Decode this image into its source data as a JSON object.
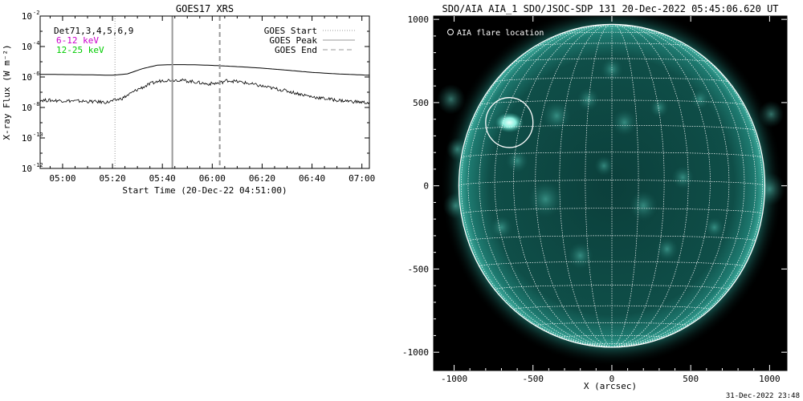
{
  "footer_timestamp": "31-Dec-2022 23:48",
  "chart_data": [
    {
      "type": "line",
      "title": "GOES17 XRS",
      "xlabel": "Start Time (20-Dec-22 04:51:00)",
      "ylabel": "X-ray Flux (W m⁻²)",
      "x_ticks": [
        "05:00",
        "05:20",
        "05:40",
        "06:00",
        "06:20",
        "06:40",
        "07:00"
      ],
      "x_range": [
        "04:51",
        "07:03"
      ],
      "y_scale": "log",
      "y_ticks": [
        {
          "base": "10",
          "exp": "-2"
        },
        {
          "base": "10",
          "exp": "-4"
        },
        {
          "base": "10",
          "exp": "-6"
        },
        {
          "base": "10",
          "exp": "-8"
        },
        {
          "base": "10",
          "exp": "-10"
        },
        {
          "base": "10",
          "exp": "-12"
        }
      ],
      "y_range": [
        1e-12,
        0.01
      ],
      "detectors_label": "Det71,3,4,5,6,9",
      "series": [
        {
          "name": "6-12 keV",
          "color": "#cc00cc",
          "points": [
            [
              "04:51",
              1.5e-06
            ],
            [
              "05:10",
              1.4e-06
            ],
            [
              "05:20",
              1.3e-06
            ],
            [
              "05:26",
              1.6e-06
            ],
            [
              "05:32",
              3.5e-06
            ],
            [
              "05:38",
              6e-06
            ],
            [
              "05:44",
              6.5e-06
            ],
            [
              "05:52",
              6.4e-06
            ],
            [
              "06:00",
              5.8e-06
            ],
            [
              "06:10",
              4.8e-06
            ],
            [
              "06:20",
              3.8e-06
            ],
            [
              "06:30",
              2.8e-06
            ],
            [
              "06:40",
              2e-06
            ],
            [
              "06:50",
              1.6e-06
            ],
            [
              "07:03",
              1.3e-06
            ]
          ]
        },
        {
          "name": "12-25 keV",
          "color": "#00cc00",
          "points": [
            [
              "04:51",
              3e-08
            ],
            [
              "05:00",
              2.8e-08
            ],
            [
              "05:10",
              2.5e-08
            ],
            [
              "05:18",
              2.2e-08
            ],
            [
              "05:24",
              4e-08
            ],
            [
              "05:30",
              1.5e-07
            ],
            [
              "05:36",
              4e-07
            ],
            [
              "05:40",
              6e-07
            ],
            [
              "05:46",
              6.5e-07
            ],
            [
              "05:52",
              5e-07
            ],
            [
              "05:58",
              3.5e-07
            ],
            [
              "06:03",
              4e-07
            ],
            [
              "06:06",
              6e-07
            ],
            [
              "06:12",
              4.5e-07
            ],
            [
              "06:20",
              2.5e-07
            ],
            [
              "06:30",
              1.2e-07
            ],
            [
              "06:40",
              5e-08
            ],
            [
              "06:50",
              3e-08
            ],
            [
              "07:03",
              2e-08
            ]
          ]
        }
      ],
      "vertical_markers": [
        {
          "name": "GOES Start",
          "time": "05:21",
          "style": "dotted"
        },
        {
          "name": "GOES Peak",
          "time": "05:44",
          "style": "solid"
        },
        {
          "name": "GOES End",
          "time": "06:03",
          "style": "dashed"
        }
      ],
      "legend": {
        "placement": "top-right",
        "entries": [
          "GOES Start",
          "GOES Peak",
          "GOES End"
        ]
      }
    },
    {
      "type": "image",
      "title": "SDO/AIA AIA_1 SDO/JSOC-SDP 131 20-Dec-2022 05:45:06.620 UT",
      "xlabel": "X (arcsec)",
      "ylabel": "",
      "x_ticks": [
        "-1000",
        "-500",
        "0",
        "500",
        "1000"
      ],
      "y_ticks": [
        "1000",
        "500",
        "0",
        "-500",
        "-1000"
      ],
      "x_range": [
        -1130,
        1110
      ],
      "y_range": [
        -1110,
        1020
      ],
      "solar_radius_arcsec": 970,
      "grid_spacing_deg": 10,
      "legend_label": "AIA flare location",
      "flare_location": {
        "x": -650,
        "y": 380,
        "radius": 150
      },
      "colors": {
        "background": "#000000",
        "disk": "#0e4a45",
        "bright": "#7ee8d8",
        "grid": "#ffffff"
      }
    }
  ]
}
